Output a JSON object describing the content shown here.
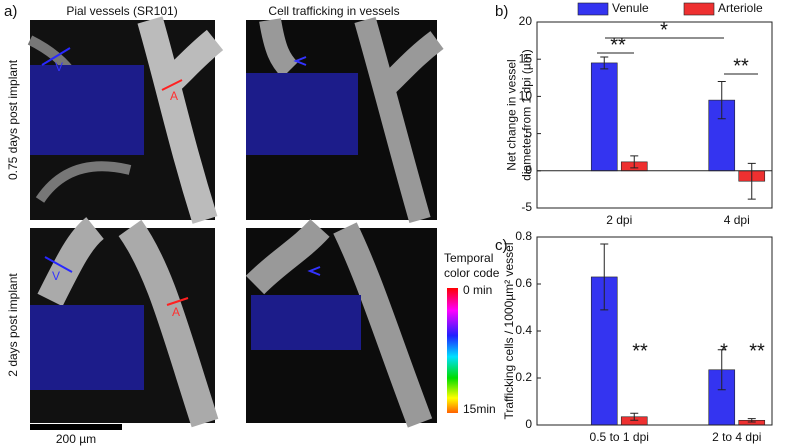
{
  "panel_a": {
    "label": "a)",
    "col_titles": [
      "Pial vessels (SR101)",
      "Cell trafficking in vessels"
    ],
    "row_labels": [
      "0.75 days post implant",
      "2 days post implant"
    ],
    "vessel_labels": [
      "V",
      "A",
      "V",
      "A"
    ],
    "colorbar_title": [
      "Temporal",
      "color code"
    ],
    "colorbar_top": "0 min",
    "colorbar_bottom": "15min",
    "scale_bar": "200 µm"
  },
  "chart_data": [
    {
      "type": "bar",
      "label": "b)",
      "ylabel": [
        "Net change in vessel",
        "diameter from 1 dpi (µm)"
      ],
      "categories": [
        "2 dpi",
        "4 dpi"
      ],
      "series": [
        {
          "name": "Venule",
          "color": "#3434f0",
          "values": [
            14.5,
            9.5
          ],
          "errors": [
            0.8,
            2.5
          ]
        },
        {
          "name": "Arteriole",
          "color": "#ee3030",
          "values": [
            1.2,
            -1.4
          ],
          "errors": [
            0.8,
            2.4
          ]
        }
      ],
      "ylim": [
        -5,
        20
      ],
      "yticks": [
        -5,
        0,
        5,
        10,
        15,
        20
      ],
      "legend": "top-right",
      "annotations": [
        "**",
        "*",
        "**"
      ]
    },
    {
      "type": "bar",
      "label": "c)",
      "ylabel": [
        "Trafficking cells / 1000µm² vessel"
      ],
      "categories": [
        "0.5 to 1 dpi",
        "2 to 4 dpi"
      ],
      "series": [
        {
          "name": "Venule",
          "color": "#3434f0",
          "values": [
            0.63,
            0.235
          ],
          "errors": [
            0.14,
            0.085
          ]
        },
        {
          "name": "Arteriole",
          "color": "#ee3030",
          "values": [
            0.035,
            0.02
          ],
          "errors": [
            0.015,
            0.007
          ]
        }
      ],
      "ylim": [
        0,
        0.8
      ],
      "yticks": [
        0,
        0.2,
        0.4,
        0.6,
        0.8
      ],
      "annotations": [
        "**",
        "*",
        "**"
      ]
    }
  ]
}
